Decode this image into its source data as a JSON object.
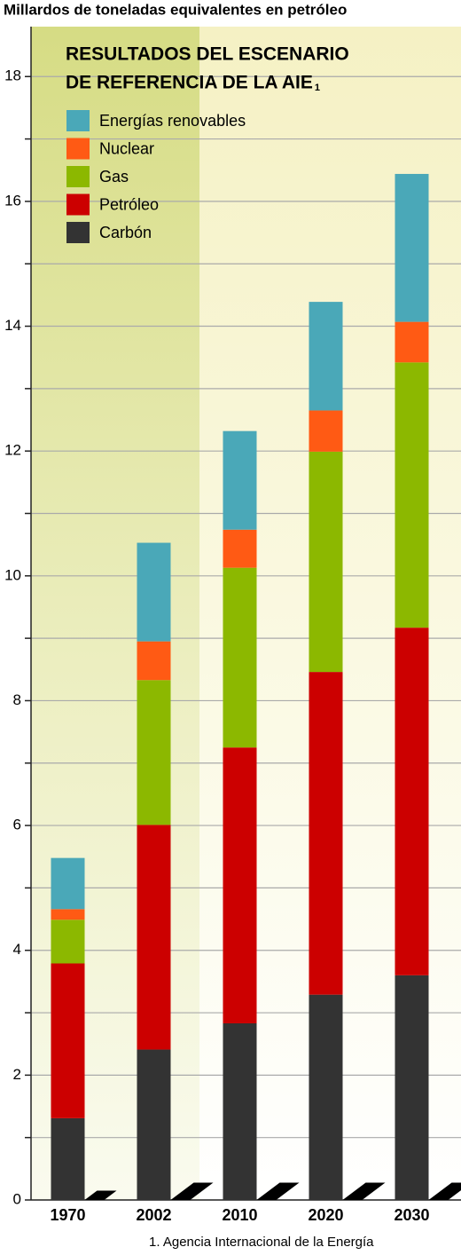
{
  "chart_data": {
    "type": "stacked_bar",
    "y_label": "Millardos de toneladas equivalentes en petróleo",
    "title": [
      "RESULTADOS DEL ESCENARIO",
      "DE REFERENCIA DE LA AIE"
    ],
    "title_note": "1",
    "footnote": "1. Agencia Internacional de la Energía",
    "categories": [
      "1970",
      "2002",
      "2010",
      "2020",
      "2030"
    ],
    "series": [
      {
        "name": "Carbón",
        "color": "#333333",
        "values": [
          1.31,
          2.41,
          2.83,
          3.29,
          3.6
        ]
      },
      {
        "name": "Petróleo",
        "color": "#cc0000",
        "values": [
          2.48,
          3.6,
          4.42,
          5.17,
          5.57
        ]
      },
      {
        "name": "Gas",
        "color": "#8cb800",
        "values": [
          0.7,
          2.32,
          2.88,
          3.53,
          4.25
        ]
      },
      {
        "name": "Nuclear",
        "color": "#ff5a14",
        "values": [
          0.17,
          0.62,
          0.61,
          0.66,
          0.65
        ]
      },
      {
        "name": "Energías renovables",
        "color": "#4aa8b8",
        "values": [
          0.82,
          1.58,
          1.58,
          1.74,
          2.37
        ]
      }
    ],
    "ylim": [
      0,
      18.8
    ],
    "yticks": [
      0,
      2,
      4,
      6,
      8,
      10,
      12,
      14,
      16,
      18
    ],
    "minor_yticks": [
      1,
      3,
      5,
      7,
      9,
      11,
      13,
      15,
      17
    ],
    "grid": true,
    "legend": "top-left"
  }
}
